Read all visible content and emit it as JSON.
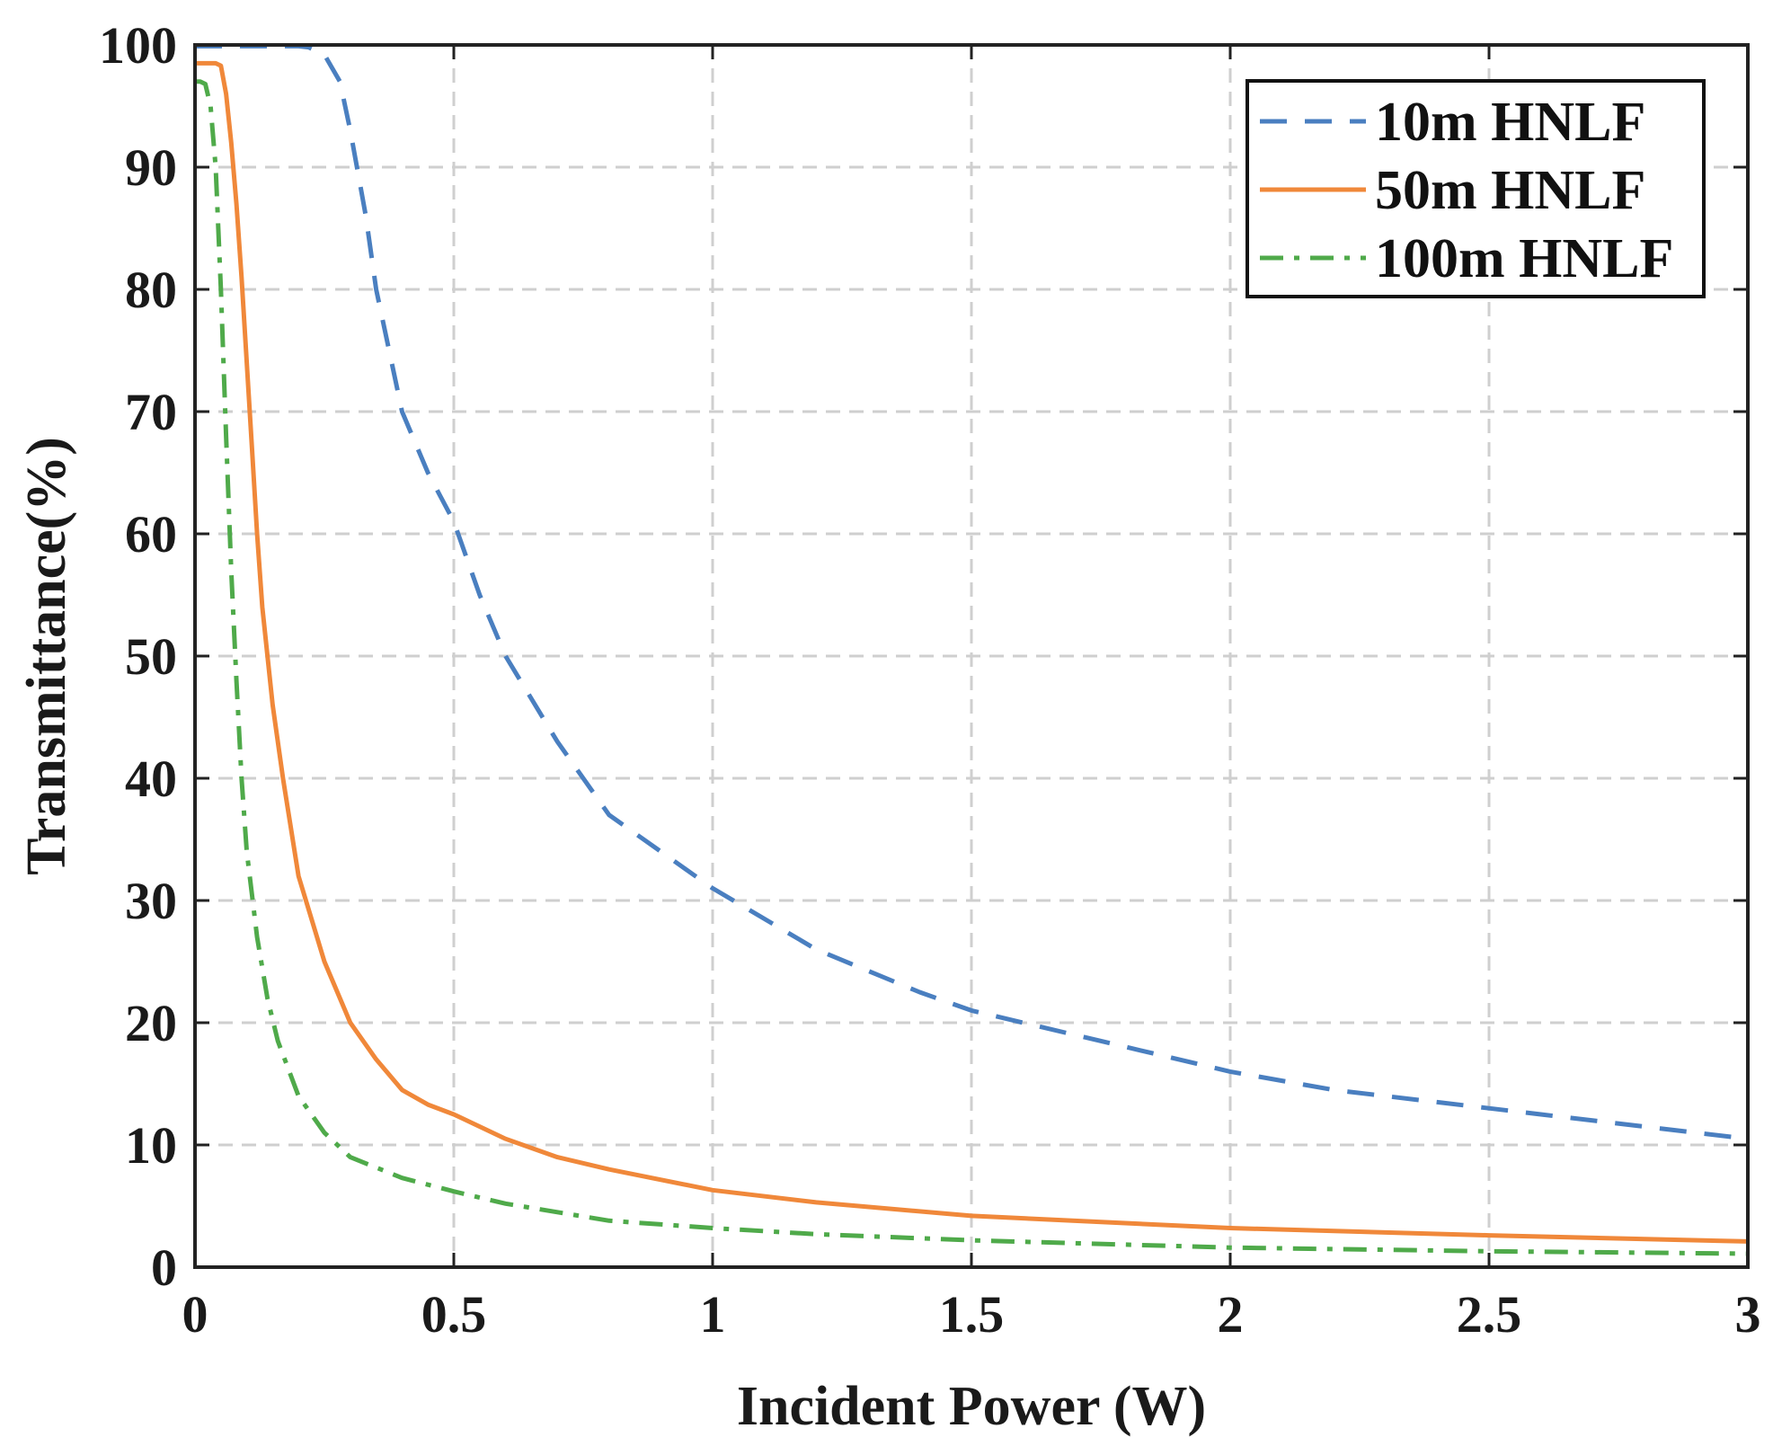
{
  "chart_data": {
    "type": "line",
    "title": "",
    "xlabel": "Incident Power (W)",
    "ylabel": "Transmittance(%)",
    "xlim": [
      0,
      3
    ],
    "ylim": [
      0,
      100
    ],
    "xticks": [
      0,
      0.5,
      1,
      1.5,
      2,
      2.5,
      3
    ],
    "xtick_labels": [
      "0",
      "0.5",
      "1",
      "1.5",
      "2",
      "2.5",
      "3"
    ],
    "yticks": [
      0,
      10,
      20,
      30,
      40,
      50,
      60,
      70,
      80,
      90,
      100
    ],
    "ytick_labels": [
      "0",
      "10",
      "20",
      "30",
      "40",
      "50",
      "60",
      "70",
      "80",
      "90",
      "100"
    ],
    "grid": true,
    "legend_position": "top-right",
    "series": [
      {
        "name": "10m HNLF",
        "color": "#4a7fc0",
        "style": "dashed",
        "x": [
          0,
          0.05,
          0.1,
          0.15,
          0.2,
          0.22,
          0.25,
          0.28,
          0.3,
          0.33,
          0.35,
          0.38,
          0.4,
          0.45,
          0.5,
          0.55,
          0.6,
          0.7,
          0.8,
          0.9,
          1.0,
          1.2,
          1.4,
          1.5,
          1.6,
          1.8,
          2.0,
          2.2,
          2.4,
          2.5,
          2.6,
          2.8,
          3.0
        ],
        "y": [
          99.9,
          99.9,
          99.9,
          99.9,
          99.9,
          99.8,
          99.2,
          97,
          93,
          86,
          80,
          74,
          70,
          65,
          61,
          55,
          50,
          43,
          37,
          34,
          31,
          26,
          22.5,
          21,
          20,
          18,
          16,
          14.5,
          13.5,
          13,
          12.5,
          11.5,
          10.5
        ]
      },
      {
        "name": "50m HNLF",
        "color": "#f0883a",
        "style": "solid",
        "x": [
          0,
          0.02,
          0.04,
          0.05,
          0.06,
          0.07,
          0.08,
          0.09,
          0.1,
          0.11,
          0.12,
          0.13,
          0.15,
          0.17,
          0.2,
          0.25,
          0.3,
          0.35,
          0.4,
          0.45,
          0.5,
          0.6,
          0.7,
          0.8,
          1.0,
          1.2,
          1.5,
          2.0,
          2.5,
          3.0
        ],
        "y": [
          98.5,
          98.5,
          98.5,
          98.3,
          96,
          92,
          87,
          81,
          74,
          67,
          60,
          54,
          46,
          40,
          32,
          25,
          20,
          17,
          14.5,
          13.3,
          12.5,
          10.5,
          9,
          8,
          6.3,
          5.3,
          4.2,
          3.2,
          2.6,
          2.1
        ]
      },
      {
        "name": "100m HNLF",
        "color": "#4faa4a",
        "style": "dashdot",
        "x": [
          0,
          0.01,
          0.02,
          0.03,
          0.04,
          0.05,
          0.06,
          0.07,
          0.08,
          0.09,
          0.1,
          0.12,
          0.14,
          0.16,
          0.2,
          0.25,
          0.3,
          0.4,
          0.5,
          0.6,
          0.8,
          1.0,
          1.2,
          1.5,
          2.0,
          2.5,
          3.0
        ],
        "y": [
          97,
          97,
          96.8,
          95,
          90,
          80,
          68,
          57,
          48,
          40,
          34,
          27,
          22,
          18.5,
          14,
          11,
          9,
          7.3,
          6.2,
          5.2,
          3.8,
          3.2,
          2.7,
          2.2,
          1.6,
          1.3,
          1.1
        ]
      }
    ]
  }
}
